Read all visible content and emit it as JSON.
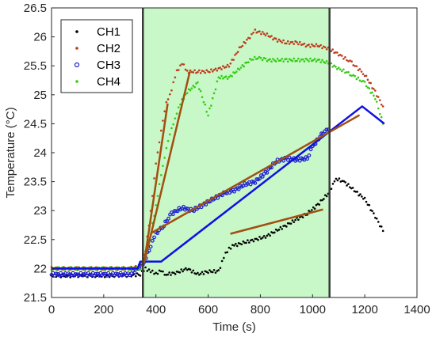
{
  "chart_data": {
    "type": "scatter",
    "xlabel": "Time (s)",
    "ylabel": "Temperature (°C)",
    "xlim": [
      0,
      1400
    ],
    "ylim": [
      21.5,
      26.5
    ],
    "x_ticks": [
      0,
      200,
      400,
      600,
      800,
      1000,
      1200,
      1400
    ],
    "y_ticks": [
      21.5,
      22,
      22.5,
      23,
      23.5,
      24,
      24.5,
      25,
      25.5,
      26,
      26.5
    ],
    "grid": false,
    "legend_position": "top-left",
    "highlight_region": {
      "x_start": 350,
      "x_end": 1065,
      "color": "#c8f7c8"
    },
    "series": [
      {
        "name": "CH1",
        "color": "#000000",
        "marker": "dot",
        "points": [
          [
            0,
            21.88
          ],
          [
            60,
            21.87
          ],
          [
            120,
            21.88
          ],
          [
            180,
            21.87
          ],
          [
            240,
            21.88
          ],
          [
            300,
            21.88
          ],
          [
            340,
            21.9
          ],
          [
            360,
            22.0
          ],
          [
            380,
            21.95
          ],
          [
            400,
            21.92
          ],
          [
            420,
            21.95
          ],
          [
            440,
            21.9
          ],
          [
            480,
            21.93
          ],
          [
            520,
            22.0
          ],
          [
            560,
            21.9
          ],
          [
            600,
            21.95
          ],
          [
            640,
            21.95
          ],
          [
            660,
            22.2
          ],
          [
            680,
            22.35
          ],
          [
            700,
            22.4
          ],
          [
            740,
            22.45
          ],
          [
            780,
            22.5
          ],
          [
            820,
            22.55
          ],
          [
            860,
            22.65
          ],
          [
            900,
            22.75
          ],
          [
            940,
            22.85
          ],
          [
            980,
            22.95
          ],
          [
            1020,
            23.1
          ],
          [
            1060,
            23.3
          ],
          [
            1090,
            23.55
          ],
          [
            1120,
            23.5
          ],
          [
            1160,
            23.35
          ],
          [
            1200,
            23.2
          ],
          [
            1240,
            22.9
          ],
          [
            1270,
            22.65
          ]
        ]
      },
      {
        "name": "CH2",
        "color": "#c0391b",
        "marker": "dot",
        "points": [
          [
            0,
            22.0
          ],
          [
            100,
            22.0
          ],
          [
            200,
            22.0
          ],
          [
            300,
            22.0
          ],
          [
            340,
            22.05
          ],
          [
            360,
            22.3
          ],
          [
            380,
            23.0
          ],
          [
            400,
            23.8
          ],
          [
            420,
            24.4
          ],
          [
            440,
            24.85
          ],
          [
            460,
            25.1
          ],
          [
            480,
            25.4
          ],
          [
            500,
            25.55
          ],
          [
            520,
            25.4
          ],
          [
            560,
            25.4
          ],
          [
            600,
            25.4
          ],
          [
            640,
            25.45
          ],
          [
            680,
            25.5
          ],
          [
            720,
            25.8
          ],
          [
            760,
            26.0
          ],
          [
            780,
            26.1
          ],
          [
            820,
            26.05
          ],
          [
            860,
            25.95
          ],
          [
            900,
            25.9
          ],
          [
            940,
            25.9
          ],
          [
            980,
            25.85
          ],
          [
            1020,
            25.85
          ],
          [
            1060,
            25.8
          ],
          [
            1100,
            25.7
          ],
          [
            1150,
            25.55
          ],
          [
            1200,
            25.35
          ],
          [
            1240,
            25.05
          ],
          [
            1270,
            24.8
          ]
        ]
      },
      {
        "name": "CH3",
        "color": "#1f1fd1",
        "marker": "circle",
        "points": [
          [
            0,
            21.9
          ],
          [
            100,
            21.9
          ],
          [
            200,
            21.9
          ],
          [
            300,
            21.9
          ],
          [
            350,
            22.05
          ],
          [
            380,
            22.4
          ],
          [
            400,
            22.6
          ],
          [
            430,
            22.75
          ],
          [
            460,
            22.95
          ],
          [
            500,
            23.05
          ],
          [
            540,
            23.0
          ],
          [
            580,
            23.1
          ],
          [
            620,
            23.2
          ],
          [
            660,
            23.3
          ],
          [
            700,
            23.35
          ],
          [
            740,
            23.45
          ],
          [
            780,
            23.5
          ],
          [
            820,
            23.65
          ],
          [
            860,
            23.85
          ],
          [
            900,
            23.9
          ],
          [
            940,
            23.88
          ],
          [
            980,
            23.9
          ],
          [
            1000,
            24.1
          ],
          [
            1040,
            24.35
          ],
          [
            1060,
            24.4
          ]
        ]
      },
      {
        "name": "CH4",
        "color": "#33cc11",
        "marker": "dot",
        "points": [
          [
            0,
            22.0
          ],
          [
            100,
            22.0
          ],
          [
            200,
            22.0
          ],
          [
            300,
            22.0
          ],
          [
            340,
            22.0
          ],
          [
            360,
            22.2
          ],
          [
            380,
            22.6
          ],
          [
            400,
            23.1
          ],
          [
            420,
            23.6
          ],
          [
            440,
            24.1
          ],
          [
            460,
            24.4
          ],
          [
            480,
            24.7
          ],
          [
            500,
            24.9
          ],
          [
            520,
            25.05
          ],
          [
            560,
            25.2
          ],
          [
            600,
            24.65
          ],
          [
            640,
            25.3
          ],
          [
            680,
            25.3
          ],
          [
            720,
            25.45
          ],
          [
            760,
            25.6
          ],
          [
            790,
            25.65
          ],
          [
            820,
            25.6
          ],
          [
            860,
            25.6
          ],
          [
            900,
            25.6
          ],
          [
            940,
            25.6
          ],
          [
            980,
            25.6
          ],
          [
            1020,
            25.6
          ],
          [
            1060,
            25.55
          ],
          [
            1100,
            25.45
          ],
          [
            1150,
            25.35
          ],
          [
            1200,
            25.2
          ],
          [
            1240,
            24.95
          ],
          [
            1270,
            24.5
          ]
        ]
      }
    ],
    "fit_lines": [
      {
        "color": "#1010e6",
        "points": [
          [
            0,
            22.0
          ],
          [
            330,
            22.0
          ],
          [
            340,
            22.12
          ],
          [
            420,
            22.12
          ],
          [
            1190,
            24.8
          ],
          [
            1275,
            24.5
          ]
        ]
      },
      {
        "color": "#a05010",
        "points": [
          [
            355,
            22.1
          ],
          [
            445,
            24.85
          ]
        ]
      },
      {
        "color": "#a05010",
        "points": [
          [
            355,
            22.1
          ],
          [
            530,
            25.4
          ]
        ]
      },
      {
        "color": "#a05010",
        "points": [
          [
            385,
            22.62
          ],
          [
            1180,
            24.65
          ]
        ]
      },
      {
        "color": "#a05010",
        "points": [
          [
            685,
            22.6
          ],
          [
            1040,
            23.02
          ]
        ]
      }
    ]
  }
}
